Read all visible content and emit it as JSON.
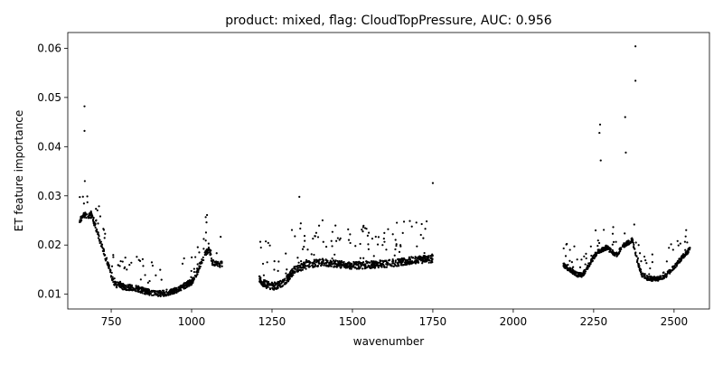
{
  "chart_data": {
    "type": "scatter",
    "title": "product: mixed, flag: CloudTopPressure, AUC: 0.956",
    "xlabel": "wavenumber",
    "ylabel": "ET feature importance",
    "xlim": [
      615,
      2610
    ],
    "ylim": [
      0.007,
      0.0632
    ],
    "x_ticks": [
      750,
      1000,
      1250,
      1500,
      1750,
      2000,
      2250,
      2500
    ],
    "x_tick_labels": [
      "750",
      "1000",
      "1250",
      "1500",
      "1750",
      "2000",
      "2250",
      "2500"
    ],
    "y_ticks": [
      0.01,
      0.02,
      0.03,
      0.04,
      0.05,
      0.06
    ],
    "y_tick_labels": [
      "0.01",
      "0.02",
      "0.03",
      "0.04",
      "0.05",
      "0.06"
    ],
    "marker_color": "#000000",
    "grid": false,
    "legend": "none",
    "segments": [
      {
        "range": [
          650,
          1095
        ],
        "anchors": [
          [
            650,
            0.025
          ],
          [
            665,
            0.026
          ],
          [
            690,
            0.026
          ],
          [
            710,
            0.022
          ],
          [
            730,
            0.018
          ],
          [
            745,
            0.015
          ],
          [
            760,
            0.012
          ],
          [
            790,
            0.0115
          ],
          [
            830,
            0.0112
          ],
          [
            860,
            0.0105
          ],
          [
            890,
            0.0101
          ],
          [
            920,
            0.0102
          ],
          [
            950,
            0.0108
          ],
          [
            980,
            0.0118
          ],
          [
            1000,
            0.0125
          ],
          [
            1015,
            0.014
          ],
          [
            1030,
            0.0165
          ],
          [
            1045,
            0.0185
          ],
          [
            1055,
            0.019
          ],
          [
            1065,
            0.0165
          ],
          [
            1080,
            0.016
          ],
          [
            1095,
            0.0162
          ]
        ],
        "spread": 0.002
      },
      {
        "range": [
          1210,
          1750
        ],
        "anchors": [
          [
            1210,
            0.013
          ],
          [
            1230,
            0.012
          ],
          [
            1260,
            0.0115
          ],
          [
            1290,
            0.0125
          ],
          [
            1320,
            0.015
          ],
          [
            1360,
            0.016
          ],
          [
            1400,
            0.0165
          ],
          [
            1440,
            0.0162
          ],
          [
            1500,
            0.0158
          ],
          [
            1550,
            0.016
          ],
          [
            1600,
            0.0162
          ],
          [
            1650,
            0.0165
          ],
          [
            1700,
            0.017
          ],
          [
            1750,
            0.0172
          ]
        ],
        "spread": 0.0025
      },
      {
        "range": [
          2155,
          2550
        ],
        "anchors": [
          [
            2155,
            0.016
          ],
          [
            2180,
            0.0148
          ],
          [
            2200,
            0.014
          ],
          [
            2215,
            0.0138
          ],
          [
            2235,
            0.016
          ],
          [
            2260,
            0.0185
          ],
          [
            2290,
            0.0195
          ],
          [
            2320,
            0.018
          ],
          [
            2345,
            0.02
          ],
          [
            2370,
            0.021
          ],
          [
            2385,
            0.017
          ],
          [
            2400,
            0.014
          ],
          [
            2420,
            0.0132
          ],
          [
            2450,
            0.0131
          ],
          [
            2475,
            0.0138
          ],
          [
            2500,
            0.0155
          ],
          [
            2525,
            0.0175
          ],
          [
            2550,
            0.0192
          ]
        ],
        "spread": 0.0015
      }
    ],
    "outliers": [
      {
        "x": 667,
        "y": 0.0482
      },
      {
        "x": 667,
        "y": 0.0432
      },
      {
        "x": 668,
        "y": 0.033
      },
      {
        "x": 1048,
        "y": 0.0261
      },
      {
        "x": 1335,
        "y": 0.0298
      },
      {
        "x": 1750,
        "y": 0.0326
      },
      {
        "x": 2270,
        "y": 0.0445
      },
      {
        "x": 2268,
        "y": 0.0428
      },
      {
        "x": 2272,
        "y": 0.0372
      },
      {
        "x": 2348,
        "y": 0.046
      },
      {
        "x": 2350,
        "y": 0.0388
      },
      {
        "x": 2380,
        "y": 0.0604
      },
      {
        "x": 2380,
        "y": 0.0534
      }
    ]
  }
}
